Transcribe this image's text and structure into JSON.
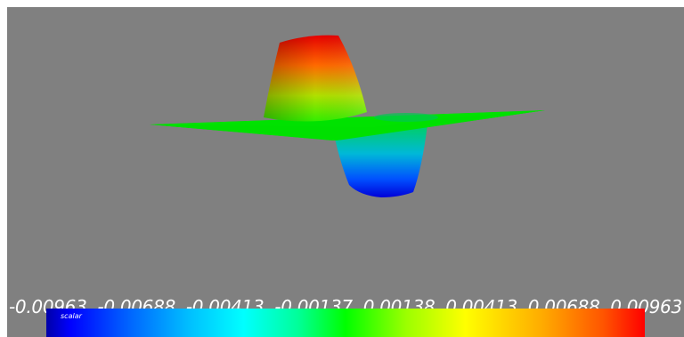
{
  "colorbar": {
    "title": "scalar",
    "ticks": [
      "-0.00963",
      "-0.00688",
      "-0.00413",
      "-0.00137",
      "0.00138",
      "0.00413",
      "0.00688",
      "0.00963"
    ],
    "min": -0.00963,
    "max": 0.00963
  },
  "colors": {
    "background": "#808080",
    "surface_low": "#0000ff",
    "surface_mid": "#00ff00",
    "surface_high": "#ff0000"
  }
}
